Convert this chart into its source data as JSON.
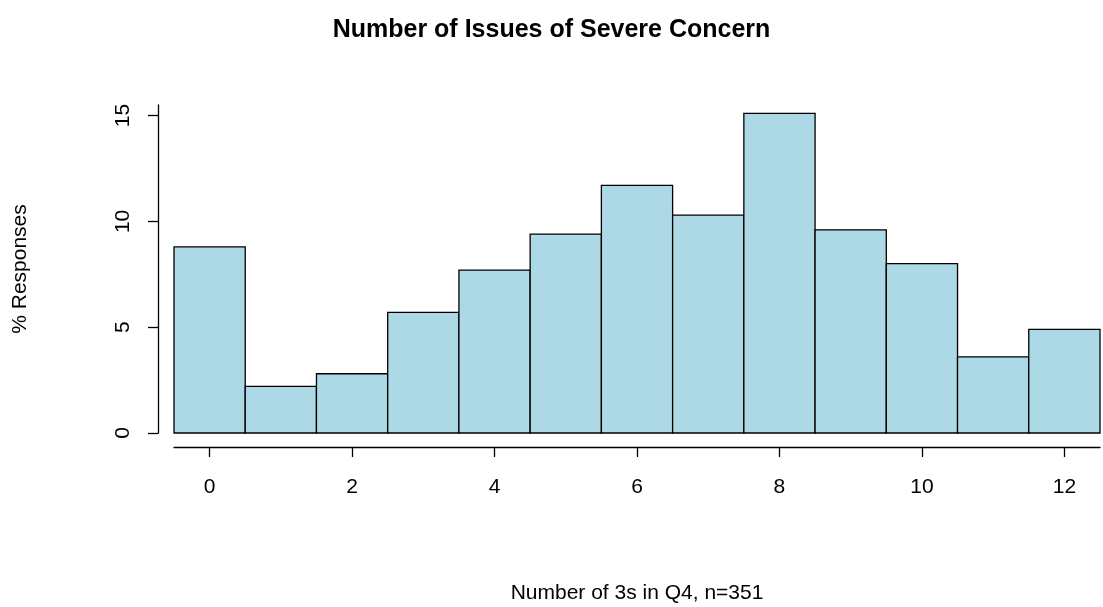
{
  "chart_data": {
    "type": "histogram",
    "title": "Number of Issues of Severe Concern",
    "xlabel": "Number of 3s in Q4, n=351",
    "ylabel": "% Responses",
    "bins": [
      -0.5,
      0.5,
      1.5,
      2.5,
      3.5,
      4.5,
      5.5,
      6.5,
      7.5,
      8.5,
      9.5,
      10.5,
      11.5,
      12.5
    ],
    "values": [
      8.8,
      2.2,
      2.8,
      5.7,
      7.7,
      9.4,
      11.7,
      10.3,
      15.1,
      9.6,
      8.0,
      3.6,
      4.9
    ],
    "color": "#add8e6",
    "xlim": [
      -0.5,
      12.5
    ],
    "xticks": [
      0,
      2,
      4,
      6,
      8,
      10,
      12
    ],
    "ylim": [
      0,
      15.5
    ],
    "yticks": [
      0,
      5,
      10,
      15
    ],
    "grid": false
  }
}
